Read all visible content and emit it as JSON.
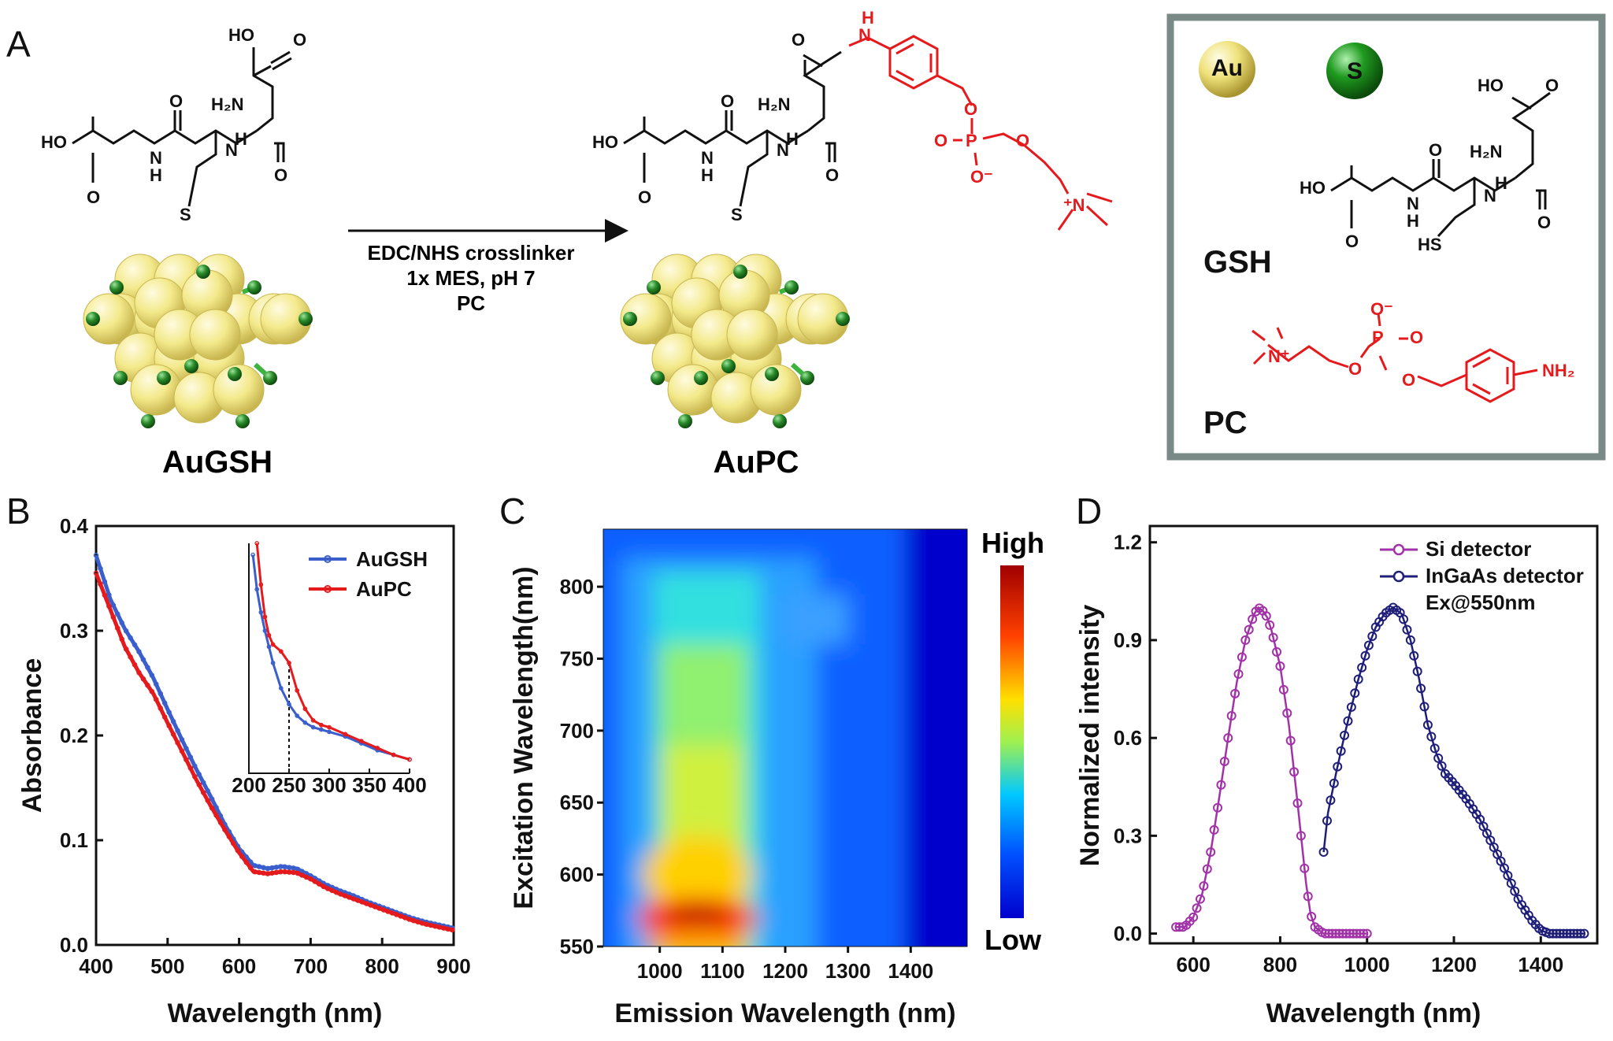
{
  "panels": {
    "A": {
      "letter": "A",
      "left_label": "AuGSH",
      "right_label": "AuPC",
      "arrow_lines": [
        "EDC/NHS crosslinker",
        "1x MES, pH 7",
        "PC"
      ],
      "legend_box": {
        "au_label": "Au",
        "s_label": "S",
        "gsh_label": "GSH",
        "pc_label": "PC"
      },
      "chem": {
        "HO": "HO",
        "H2N": "H₂N",
        "NH2": "NH₂",
        "N": "N",
        "H": "H",
        "O": "O",
        "S": "S",
        "HS": "HS",
        "P": "P",
        "Nplus": "⁺N",
        "Ominus": "O⁻",
        "Nplus2": "N⁺"
      }
    },
    "B": {
      "letter": "B",
      "ylabel": "Absorbance",
      "xlabel": "Wavelength (nm)",
      "legend": [
        "AuGSH",
        "AuPC"
      ]
    },
    "C": {
      "letter": "C",
      "ylabel": "Excitation Wavelength(nm)",
      "xlabel": "Emission Wavelength (nm)",
      "colorbar_high": "High",
      "colorbar_low": "Low"
    },
    "D": {
      "letter": "D",
      "ylabel": "Normalized intensity",
      "xlabel": "Wavelength (nm)",
      "legend": [
        "Si detector",
        "InGaAs detector"
      ],
      "note": "Ex@550nm"
    }
  },
  "colors": {
    "augsh": "#3a5fcd",
    "aupc": "#e41a1c",
    "si": "#a232a8",
    "ingaas": "#1f1f7a",
    "gold": "#f3e98a",
    "sulfur": "#2a8a2a",
    "chem_red": "#e41a1c",
    "box_border": "#7a8a86"
  },
  "chart_data": [
    {
      "id": "B",
      "type": "line",
      "xlim": [
        400,
        900
      ],
      "ylim": [
        0.0,
        0.4
      ],
      "xticks": [
        400,
        500,
        600,
        700,
        800,
        900
      ],
      "yticks": [
        0.0,
        0.1,
        0.2,
        0.3,
        0.4
      ],
      "ytick_labels": [
        "0.0",
        "0.1",
        "0.2",
        "0.3",
        "0.4"
      ],
      "series": [
        {
          "name": "AuGSH",
          "color": "#3a5fcd",
          "x": [
            400,
            420,
            440,
            460,
            480,
            500,
            520,
            540,
            560,
            580,
            600,
            620,
            640,
            660,
            680,
            700,
            720,
            740,
            760,
            780,
            800,
            820,
            840,
            860,
            880,
            900
          ],
          "y": [
            0.372,
            0.33,
            0.302,
            0.28,
            0.255,
            0.225,
            0.196,
            0.168,
            0.142,
            0.115,
            0.092,
            0.076,
            0.073,
            0.075,
            0.073,
            0.066,
            0.058,
            0.052,
            0.047,
            0.041,
            0.036,
            0.031,
            0.026,
            0.022,
            0.019,
            0.016
          ]
        },
        {
          "name": "AuPC",
          "color": "#e41a1c",
          "x": [
            400,
            420,
            440,
            460,
            480,
            500,
            520,
            540,
            560,
            580,
            600,
            620,
            640,
            660,
            680,
            700,
            720,
            740,
            760,
            780,
            800,
            820,
            840,
            860,
            880,
            900
          ],
          "y": [
            0.355,
            0.32,
            0.285,
            0.26,
            0.24,
            0.212,
            0.185,
            0.158,
            0.133,
            0.11,
            0.088,
            0.07,
            0.068,
            0.07,
            0.069,
            0.063,
            0.055,
            0.049,
            0.044,
            0.039,
            0.034,
            0.029,
            0.024,
            0.02,
            0.017,
            0.014
          ]
        }
      ]
    },
    {
      "id": "B-inset",
      "type": "line",
      "xlim": [
        200,
        400
      ],
      "xticks": [
        200,
        250,
        300,
        350,
        400
      ],
      "marker_x": 250,
      "series": [
        {
          "name": "AuGSH",
          "color": "#3a5fcd",
          "x": [
            205,
            210,
            215,
            220,
            225,
            230,
            240,
            250,
            260,
            270,
            280,
            290,
            300,
            320,
            340,
            360,
            380,
            400
          ],
          "y": [
            0.95,
            0.8,
            0.7,
            0.62,
            0.55,
            0.48,
            0.37,
            0.3,
            0.25,
            0.22,
            0.2,
            0.19,
            0.18,
            0.16,
            0.13,
            0.1,
            0.08,
            0.06
          ]
        },
        {
          "name": "AuPC",
          "color": "#e41a1c",
          "x": [
            210,
            215,
            220,
            225,
            230,
            240,
            250,
            260,
            270,
            280,
            290,
            300,
            320,
            340,
            360,
            380,
            400
          ],
          "y": [
            1.0,
            0.82,
            0.68,
            0.6,
            0.56,
            0.53,
            0.48,
            0.36,
            0.28,
            0.23,
            0.21,
            0.2,
            0.17,
            0.14,
            0.11,
            0.08,
            0.06
          ]
        }
      ]
    },
    {
      "id": "C",
      "type": "heatmap",
      "xlim": [
        910,
        1490
      ],
      "ylim": [
        550,
        840
      ],
      "xticks": [
        1000,
        1100,
        1200,
        1300,
        1400
      ],
      "yticks": [
        550,
        600,
        650,
        700,
        750,
        800
      ],
      "colorscale": [
        "#0000cc",
        "#0050ff",
        "#00c8ff",
        "#a0f050",
        "#ffe000",
        "#ff4000",
        "#a00000"
      ]
    },
    {
      "id": "D",
      "type": "scatter",
      "xlim": [
        500,
        1530
      ],
      "ylim": [
        -0.03,
        1.25
      ],
      "xticks": [
        600,
        800,
        1000,
        1200,
        1400
      ],
      "yticks": [
        0.0,
        0.3,
        0.6,
        0.9,
        1.2
      ],
      "ytick_labels": [
        "0.0",
        "0.3",
        "0.6",
        "0.9",
        "1.2"
      ],
      "series": [
        {
          "name": "Si detector",
          "color": "#a232a8",
          "x": [
            560,
            580,
            600,
            620,
            640,
            660,
            680,
            700,
            720,
            740,
            750,
            760,
            770,
            780,
            800,
            820,
            840,
            860,
            870,
            880,
            890,
            900,
            920,
            950,
            1000
          ],
          "y": [
            0.02,
            0.02,
            0.05,
            0.12,
            0.25,
            0.42,
            0.6,
            0.77,
            0.9,
            0.98,
            1.0,
            0.99,
            0.97,
            0.93,
            0.82,
            0.64,
            0.4,
            0.15,
            0.06,
            0.02,
            0.01,
            0.0,
            0.0,
            0.0,
            0.0
          ]
        },
        {
          "name": "InGaAs detector",
          "color": "#1f1f7a",
          "x": [
            900,
            910,
            930,
            950,
            980,
            1000,
            1020,
            1040,
            1060,
            1080,
            1100,
            1120,
            1140,
            1160,
            1180,
            1200,
            1230,
            1260,
            1290,
            1320,
            1350,
            1380,
            1400,
            1420,
            1450,
            1500
          ],
          "y": [
            0.25,
            0.37,
            0.5,
            0.62,
            0.78,
            0.87,
            0.94,
            0.98,
            1.0,
            0.98,
            0.9,
            0.78,
            0.64,
            0.55,
            0.49,
            0.46,
            0.41,
            0.35,
            0.27,
            0.19,
            0.1,
            0.04,
            0.01,
            0.0,
            0.0,
            0.0
          ]
        }
      ]
    }
  ]
}
